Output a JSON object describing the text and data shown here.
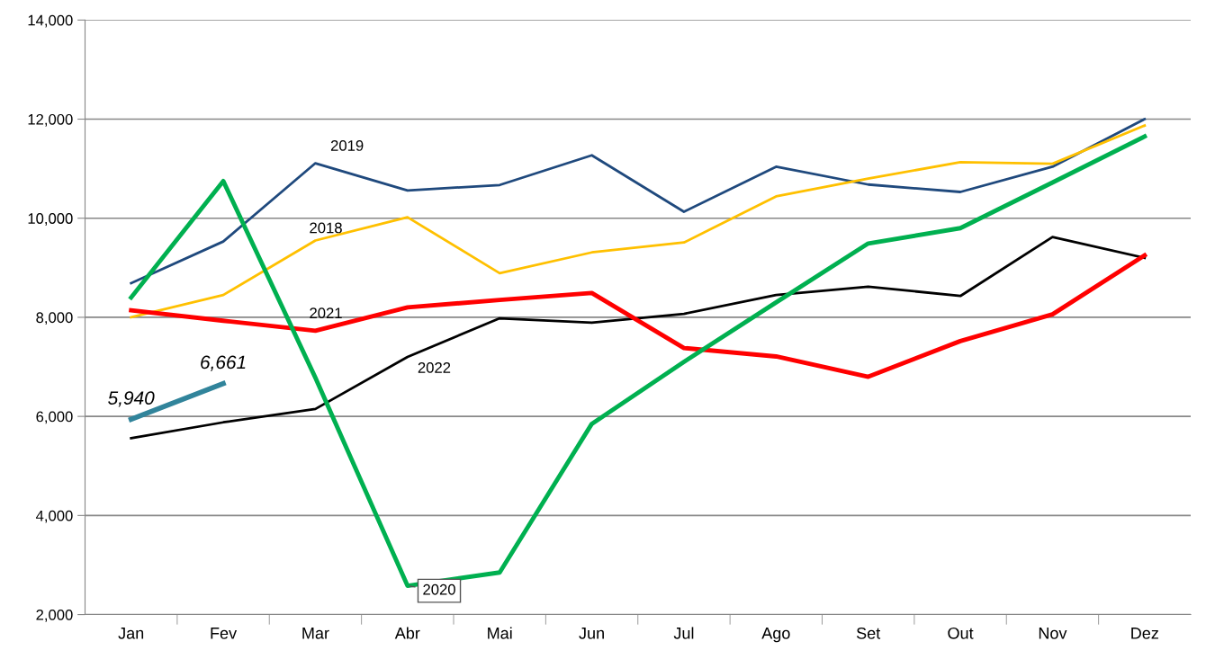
{
  "chart_data": {
    "type": "line",
    "categories": [
      "Jan",
      "Fev",
      "Mar",
      "Abr",
      "Mai",
      "Jun",
      "Jul",
      "Ago",
      "Set",
      "Out",
      "Nov",
      "Dez"
    ],
    "ylim": [
      2000,
      14000
    ],
    "yticks": [
      {
        "value": 2000,
        "label": "2,000"
      },
      {
        "value": 4000,
        "label": "4,000"
      },
      {
        "value": 6000,
        "label": "6,000"
      },
      {
        "value": 8000,
        "label": "8,000"
      },
      {
        "value": 10000,
        "label": "10,000"
      },
      {
        "value": 12000,
        "label": "12,000"
      },
      {
        "value": 14000,
        "label": "14,000"
      }
    ],
    "grid": "y",
    "legend": false,
    "marker": "none",
    "line_style": "solid",
    "series": [
      {
        "name": "2019",
        "color": "#1f497d",
        "values": [
          8690,
          9530,
          11110,
          10560,
          10670,
          11270,
          10130,
          11040,
          10680,
          10530,
          11040,
          12000
        ]
      },
      {
        "name": "2018",
        "color": "#ffc000",
        "values": [
          8000,
          8450,
          9550,
          10020,
          8890,
          9310,
          9510,
          10440,
          10800,
          11130,
          11100,
          11870
        ]
      },
      {
        "name": "2022",
        "color": "#000000",
        "values": [
          5560,
          5880,
          6150,
          7200,
          7980,
          7890,
          8070,
          8450,
          8620,
          8430,
          9620,
          9200
        ]
      },
      {
        "name": "2021",
        "color": "#ff0000",
        "values": [
          8140,
          7930,
          7730,
          8200,
          8350,
          8490,
          7380,
          7210,
          6800,
          7520,
          8060,
          9250
        ]
      },
      {
        "name": "2020",
        "color": "#00b050",
        "values": [
          8400,
          10750,
          6780,
          2580,
          2850,
          5850,
          7100,
          8300,
          9490,
          9800,
          10720,
          11650
        ]
      },
      {
        "color": "#31849b",
        "values": [
          5940,
          6661,
          null,
          null,
          null,
          null,
          null,
          null,
          null,
          null,
          null,
          null
        ],
        "value_labels": [
          "5,940",
          "6,661",
          null,
          null,
          null,
          null,
          null,
          null,
          null,
          null,
          null,
          null
        ]
      }
    ]
  }
}
